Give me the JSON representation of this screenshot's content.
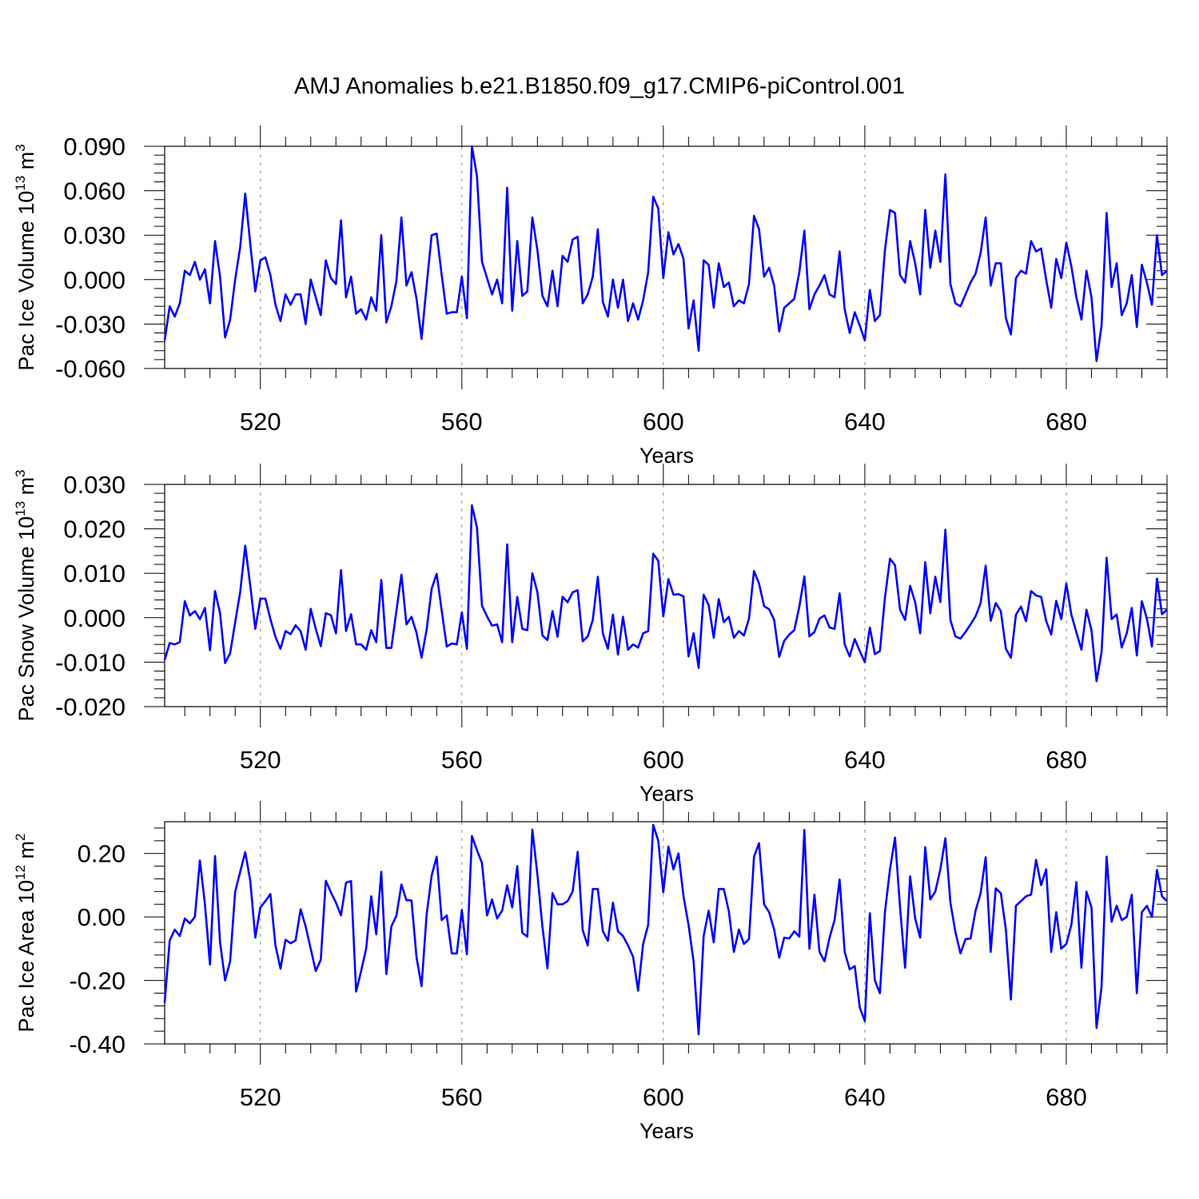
{
  "title": "AMJ Anomalies b.e21.B1850.f09_g17.CMIP6-piControl.001",
  "chart_data": [
    {
      "type": "line",
      "xlabel": "Years",
      "ylabel": "Pac Ice Volume",
      "ylabel_unit_base": "10",
      "ylabel_unit_exp": "13",
      "ylabel_unit_rest": " m",
      "ylabel_unit_exp2": "3",
      "xlim": [
        501,
        700
      ],
      "ylim": [
        -0.06,
        0.09
      ],
      "xticks": [
        520,
        560,
        600,
        640,
        680
      ],
      "yticks": [
        "0.090",
        "0.060",
        "0.030",
        "0.000",
        "-0.030",
        "-0.060"
      ],
      "ytick_values": [
        0.09,
        0.06,
        0.03,
        0.0,
        -0.03,
        -0.06
      ],
      "line_color": "#0000ff",
      "x_start": 501,
      "values": [
        -0.041,
        -0.018,
        -0.025,
        -0.016,
        0.006,
        0.003,
        0.012,
        0.0,
        0.007,
        -0.016,
        0.026,
        0.002,
        -0.039,
        -0.027,
        0.0,
        0.022,
        0.058,
        0.024,
        -0.008,
        0.013,
        0.015,
        0.003,
        -0.017,
        -0.028,
        -0.01,
        -0.017,
        -0.01,
        -0.01,
        -0.03,
        0.0,
        -0.012,
        -0.024,
        0.013,
        0.001,
        -0.003,
        0.04,
        -0.012,
        0.002,
        -0.023,
        -0.02,
        -0.027,
        -0.012,
        -0.021,
        0.03,
        -0.029,
        -0.018,
        -0.001,
        0.042,
        -0.004,
        0.005,
        -0.013,
        -0.04,
        -0.004,
        0.03,
        0.031,
        0.003,
        -0.023,
        -0.022,
        -0.022,
        0.002,
        -0.026,
        0.09,
        0.07,
        0.012,
        0.001,
        -0.01,
        0.0,
        -0.016,
        0.062,
        -0.021,
        0.026,
        -0.011,
        -0.008,
        0.042,
        0.02,
        -0.011,
        -0.018,
        0.006,
        -0.018,
        0.016,
        0.012,
        0.027,
        0.029,
        -0.016,
        -0.01,
        0.002,
        0.034,
        -0.015,
        -0.025,
        0.0,
        -0.019,
        0.0,
        -0.028,
        -0.016,
        -0.027,
        -0.014,
        0.005,
        0.056,
        0.048,
        0.001,
        0.032,
        0.017,
        0.024,
        0.014,
        -0.033,
        -0.014,
        -0.048,
        0.013,
        0.01,
        -0.019,
        0.011,
        -0.005,
        -0.002,
        -0.018,
        -0.014,
        -0.016,
        -0.003,
        0.043,
        0.034,
        0.002,
        0.008,
        -0.004,
        -0.035,
        -0.019,
        -0.016,
        -0.013,
        0.005,
        0.033,
        -0.02,
        -0.01,
        -0.004,
        0.003,
        -0.01,
        -0.012,
        0.019,
        -0.02,
        -0.036,
        -0.022,
        -0.031,
        -0.041,
        -0.007,
        -0.028,
        -0.024,
        0.02,
        0.047,
        0.045,
        0.003,
        -0.002,
        0.026,
        0.011,
        -0.01,
        0.047,
        0.008,
        0.033,
        0.012,
        0.071,
        -0.003,
        -0.016,
        -0.018,
        -0.01,
        -0.002,
        0.004,
        0.018,
        0.042,
        -0.004,
        0.011,
        0.011,
        -0.026,
        -0.037,
        0.001,
        0.006,
        0.004,
        0.026,
        0.019,
        0.021,
        0.0,
        -0.019,
        0.014,
        0.001,
        0.025,
        0.009,
        -0.012,
        -0.027,
        0.006,
        -0.012,
        -0.055,
        -0.031,
        0.045,
        -0.005,
        0.011,
        -0.024,
        -0.016,
        0.003,
        -0.032,
        0.01,
        -0.002,
        -0.017,
        0.03,
        0.003,
        0.006
      ]
    },
    {
      "type": "line",
      "xlabel": "Years",
      "ylabel": "Pac Snow Volume",
      "ylabel_unit_base": "10",
      "ylabel_unit_exp": "13",
      "ylabel_unit_rest": " m",
      "ylabel_unit_exp2": "3",
      "xlim": [
        501,
        700
      ],
      "ylim": [
        -0.02,
        0.03
      ],
      "xticks": [
        520,
        560,
        600,
        640,
        680
      ],
      "yticks": [
        "0.030",
        "0.020",
        "0.010",
        "0.000",
        "-0.010",
        "-0.020"
      ],
      "ytick_values": [
        0.03,
        0.02,
        0.01,
        0.0,
        -0.01,
        -0.02
      ],
      "line_color": "#0000ff",
      "x_start": 501,
      "values": [
        -0.0095,
        -0.0057,
        -0.006,
        -0.0055,
        0.0037,
        0.0005,
        0.0015,
        -0.0003,
        0.0022,
        -0.0073,
        0.006,
        0.001,
        -0.0102,
        -0.008,
        -0.001,
        0.0058,
        0.0162,
        0.0072,
        -0.0025,
        0.0043,
        0.0043,
        -0.0003,
        -0.0043,
        -0.007,
        -0.003,
        -0.0037,
        -0.0017,
        -0.003,
        -0.0072,
        0.002,
        -0.0025,
        -0.0064,
        0.001,
        0.0006,
        -0.0035,
        0.0107,
        -0.003,
        0.0008,
        -0.006,
        -0.006,
        -0.0072,
        -0.0028,
        -0.0055,
        0.0085,
        -0.0068,
        -0.0068,
        0.0015,
        0.0097,
        -0.0015,
        0.0002,
        -0.0034,
        -0.009,
        -0.0027,
        0.0065,
        0.0099,
        0.0016,
        -0.0065,
        -0.0058,
        -0.006,
        0.0012,
        -0.007,
        0.0253,
        0.0203,
        0.0027,
        0.0003,
        -0.0018,
        -0.0015,
        -0.0055,
        0.0165,
        -0.0055,
        0.0047,
        -0.0025,
        -0.0028,
        0.01,
        0.0058,
        -0.004,
        -0.005,
        0.0015,
        -0.0043,
        0.0047,
        0.0035,
        0.0057,
        0.0062,
        -0.0053,
        -0.0042,
        -0.0005,
        0.0092,
        -0.0035,
        -0.007,
        0.0007,
        -0.0083,
        0.0002,
        -0.0072,
        -0.006,
        -0.0067,
        -0.0035,
        -0.003,
        0.0144,
        0.0128,
        0.0003,
        0.0087,
        0.0052,
        0.0053,
        0.0048,
        -0.0087,
        -0.0035,
        -0.0113,
        0.0052,
        0.0028,
        -0.0045,
        0.0042,
        -0.001,
        0.0002,
        -0.0045,
        -0.003,
        -0.004,
        -0.0002,
        0.0105,
        0.0077,
        0.0026,
        0.0019,
        -0.0005,
        -0.0088,
        -0.0052,
        -0.0038,
        -0.0028,
        0.0025,
        0.0093,
        -0.0042,
        -0.0032,
        -0.0002,
        0.0005,
        -0.0022,
        -0.0025,
        0.0055,
        -0.006,
        -0.0087,
        -0.0048,
        -0.0075,
        -0.01,
        -0.0022,
        -0.0082,
        -0.0075,
        0.0045,
        0.0133,
        0.0118,
        0.0018,
        -0.0005,
        0.0072,
        0.0035,
        -0.0035,
        0.0125,
        0.001,
        0.0092,
        0.0035,
        0.0198,
        -0.0005,
        -0.0042,
        -0.0047,
        -0.0032,
        -0.0015,
        0.0003,
        0.0033,
        0.0117,
        -0.0007,
        0.0033,
        0.0015,
        -0.007,
        -0.009,
        0.0007,
        0.0025,
        -0.0008,
        0.006,
        0.005,
        0.0047,
        -0.0007,
        -0.0038,
        0.0038,
        -0.0003,
        0.0077,
        0.0007,
        -0.0033,
        -0.0072,
        0.0018,
        -0.0028,
        -0.0143,
        -0.0078,
        0.0135,
        -0.0003,
        0.0007,
        -0.0067,
        -0.0035,
        0.0022,
        -0.0085,
        0.0037,
        -0.0002,
        -0.0065,
        0.0088,
        0.0008,
        0.0018
      ]
    },
    {
      "type": "line",
      "xlabel": "Years",
      "ylabel": "Pac Ice Area",
      "ylabel_unit_base": "10",
      "ylabel_unit_exp": "12",
      "ylabel_unit_rest": " m",
      "ylabel_unit_exp2": "2",
      "xlim": [
        501,
        700
      ],
      "ylim": [
        -0.4,
        0.3
      ],
      "xticks": [
        520,
        560,
        600,
        640,
        680
      ],
      "yticks": [
        "0.20",
        "0.00",
        "-0.20",
        "-0.40"
      ],
      "ytick_values": [
        0.2,
        0.0,
        -0.2,
        -0.4
      ],
      "line_color": "#0000ff",
      "x_start": 501,
      "values": [
        -0.27,
        -0.075,
        -0.04,
        -0.06,
        -0.005,
        -0.02,
        0.0,
        0.178,
        0.04,
        -0.15,
        0.192,
        -0.08,
        -0.2,
        -0.14,
        0.08,
        0.142,
        0.204,
        0.114,
        -0.065,
        0.03,
        0.05,
        0.072,
        -0.09,
        -0.163,
        -0.072,
        -0.083,
        -0.074,
        0.024,
        -0.03,
        -0.1,
        -0.17,
        -0.135,
        0.114,
        0.078,
        0.045,
        0.005,
        0.108,
        0.113,
        -0.235,
        -0.17,
        -0.1,
        0.065,
        -0.055,
        0.142,
        -0.18,
        -0.03,
        0.004,
        0.102,
        0.053,
        0.052,
        -0.127,
        -0.218,
        0.007,
        0.13,
        0.19,
        -0.01,
        0.005,
        -0.115,
        -0.115,
        0.022,
        -0.118,
        0.255,
        0.21,
        0.17,
        0.005,
        0.055,
        -0.005,
        0.02,
        0.1,
        0.03,
        0.16,
        -0.05,
        -0.062,
        0.275,
        0.134,
        -0.03,
        -0.162,
        0.075,
        0.04,
        0.04,
        0.05,
        0.08,
        0.205,
        -0.042,
        -0.09,
        0.088,
        0.088,
        -0.045,
        -0.075,
        0.045,
        -0.045,
        -0.06,
        -0.09,
        -0.125,
        -0.232,
        -0.085,
        -0.025,
        0.29,
        0.24,
        0.078,
        0.222,
        0.15,
        0.2,
        0.065,
        -0.025,
        -0.14,
        -0.37,
        -0.06,
        0.02,
        -0.08,
        0.088,
        0.088,
        0.018,
        -0.11,
        -0.04,
        -0.085,
        -0.07,
        0.19,
        0.232,
        0.04,
        0.015,
        -0.04,
        -0.128,
        -0.065,
        -0.068,
        -0.045,
        -0.062,
        0.274,
        -0.1,
        0.07,
        -0.11,
        -0.14,
        -0.065,
        -0.01,
        0.118,
        -0.11,
        -0.165,
        -0.155,
        -0.285,
        -0.328,
        0.012,
        -0.2,
        -0.24,
        0.015,
        0.15,
        0.25,
        0.03,
        -0.16,
        0.128,
        -0.005,
        -0.065,
        0.22,
        0.055,
        0.08,
        0.15,
        0.248,
        0.045,
        -0.048,
        -0.115,
        -0.07,
        -0.068,
        0.02,
        0.075,
        0.188,
        -0.11,
        0.09,
        0.075,
        -0.04,
        -0.26,
        0.035,
        0.05,
        0.065,
        0.07,
        0.18,
        0.1,
        0.15,
        -0.11,
        0.015,
        -0.1,
        -0.085,
        -0.025,
        0.11,
        -0.16,
        0.08,
        0.03,
        -0.35,
        -0.22,
        0.19,
        -0.015,
        0.035,
        -0.01,
        0.0,
        0.07,
        -0.24,
        0.015,
        0.035,
        0.0,
        0.148,
        0.065,
        0.05
      ]
    }
  ]
}
